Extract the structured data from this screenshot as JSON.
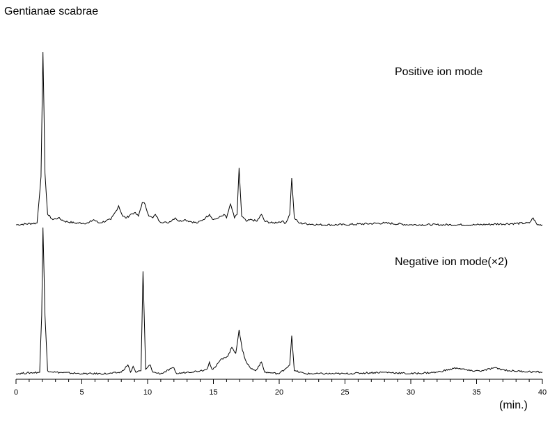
{
  "chart_data": {
    "type": "line",
    "title": "Gentianae scabrae",
    "xlabel": "(min.)",
    "xlim": [
      0,
      40
    ],
    "xticks": [
      0,
      5,
      10,
      15,
      20,
      25,
      30,
      35,
      40
    ],
    "grid": false,
    "legend": "none",
    "line_color": "#000000",
    "series": [
      {
        "name": "Positive ion mode",
        "baseline": 2,
        "points": [
          [
            0.0,
            0
          ],
          [
            1.6,
            1
          ],
          [
            1.9,
            28
          ],
          [
            2.05,
            100
          ],
          [
            2.2,
            30
          ],
          [
            2.4,
            6
          ],
          [
            2.8,
            3
          ],
          [
            3.2,
            4
          ],
          [
            3.7,
            2
          ],
          [
            4.5,
            1
          ],
          [
            5.5,
            1
          ],
          [
            5.9,
            3
          ],
          [
            6.3,
            1
          ],
          [
            7.2,
            3
          ],
          [
            7.6,
            8
          ],
          [
            7.8,
            11
          ],
          [
            8.1,
            5
          ],
          [
            8.4,
            4
          ],
          [
            8.7,
            6
          ],
          [
            9.0,
            7
          ],
          [
            9.3,
            5
          ],
          [
            9.6,
            13
          ],
          [
            9.8,
            12
          ],
          [
            10.1,
            5
          ],
          [
            10.4,
            4
          ],
          [
            10.6,
            6
          ],
          [
            10.9,
            2
          ],
          [
            11.5,
            1
          ],
          [
            12.1,
            4
          ],
          [
            12.4,
            2
          ],
          [
            12.8,
            3
          ],
          [
            13.2,
            2
          ],
          [
            13.8,
            1
          ],
          [
            14.4,
            4
          ],
          [
            14.7,
            6
          ],
          [
            15.0,
            3
          ],
          [
            15.4,
            4
          ],
          [
            15.8,
            6
          ],
          [
            16.0,
            4
          ],
          [
            16.3,
            12
          ],
          [
            16.6,
            4
          ],
          [
            16.8,
            6
          ],
          [
            16.95,
            33
          ],
          [
            17.15,
            5
          ],
          [
            17.5,
            2
          ],
          [
            17.9,
            3
          ],
          [
            18.3,
            2
          ],
          [
            18.65,
            6
          ],
          [
            18.9,
            2
          ],
          [
            19.5,
            1
          ],
          [
            20.2,
            2
          ],
          [
            20.5,
            1
          ],
          [
            20.8,
            6
          ],
          [
            20.95,
            27
          ],
          [
            21.15,
            4
          ],
          [
            21.5,
            1
          ],
          [
            23.0,
            0
          ],
          [
            25.0,
            0
          ],
          [
            28.0,
            1
          ],
          [
            30.0,
            0
          ],
          [
            35.0,
            0
          ],
          [
            39.0,
            1
          ],
          [
            39.3,
            4
          ],
          [
            39.6,
            0
          ],
          [
            40.0,
            0
          ]
        ]
      },
      {
        "name": "Negative ion mode(×2)",
        "baseline": 2,
        "points": [
          [
            0.0,
            0
          ],
          [
            1.8,
            1
          ],
          [
            1.95,
            40
          ],
          [
            2.05,
            100
          ],
          [
            2.2,
            40
          ],
          [
            2.4,
            2
          ],
          [
            3.0,
            1
          ],
          [
            5.0,
            0
          ],
          [
            7.0,
            0
          ],
          [
            8.0,
            1
          ],
          [
            8.5,
            6
          ],
          [
            8.7,
            1
          ],
          [
            8.9,
            5
          ],
          [
            9.1,
            1
          ],
          [
            9.5,
            2
          ],
          [
            9.65,
            70
          ],
          [
            9.85,
            3
          ],
          [
            10.2,
            6
          ],
          [
            10.4,
            1
          ],
          [
            11.0,
            0
          ],
          [
            12.0,
            4
          ],
          [
            12.2,
            0
          ],
          [
            13.0,
            1
          ],
          [
            14.0,
            2
          ],
          [
            14.5,
            3
          ],
          [
            14.7,
            8
          ],
          [
            14.9,
            3
          ],
          [
            15.2,
            5
          ],
          [
            15.5,
            9
          ],
          [
            15.8,
            11
          ],
          [
            16.1,
            12
          ],
          [
            16.4,
            18
          ],
          [
            16.7,
            14
          ],
          [
            16.95,
            30
          ],
          [
            17.2,
            16
          ],
          [
            17.5,
            8
          ],
          [
            17.8,
            4
          ],
          [
            18.2,
            2
          ],
          [
            18.65,
            8
          ],
          [
            18.9,
            1
          ],
          [
            20.0,
            0
          ],
          [
            20.8,
            6
          ],
          [
            20.95,
            26
          ],
          [
            21.15,
            2
          ],
          [
            22.0,
            0
          ],
          [
            25.0,
            0
          ],
          [
            28.0,
            1
          ],
          [
            30.0,
            0
          ],
          [
            32.0,
            1
          ],
          [
            33.5,
            4
          ],
          [
            34.5,
            2
          ],
          [
            35.5,
            2
          ],
          [
            36.3,
            4
          ],
          [
            37.5,
            2
          ],
          [
            40.0,
            1
          ]
        ]
      }
    ]
  }
}
